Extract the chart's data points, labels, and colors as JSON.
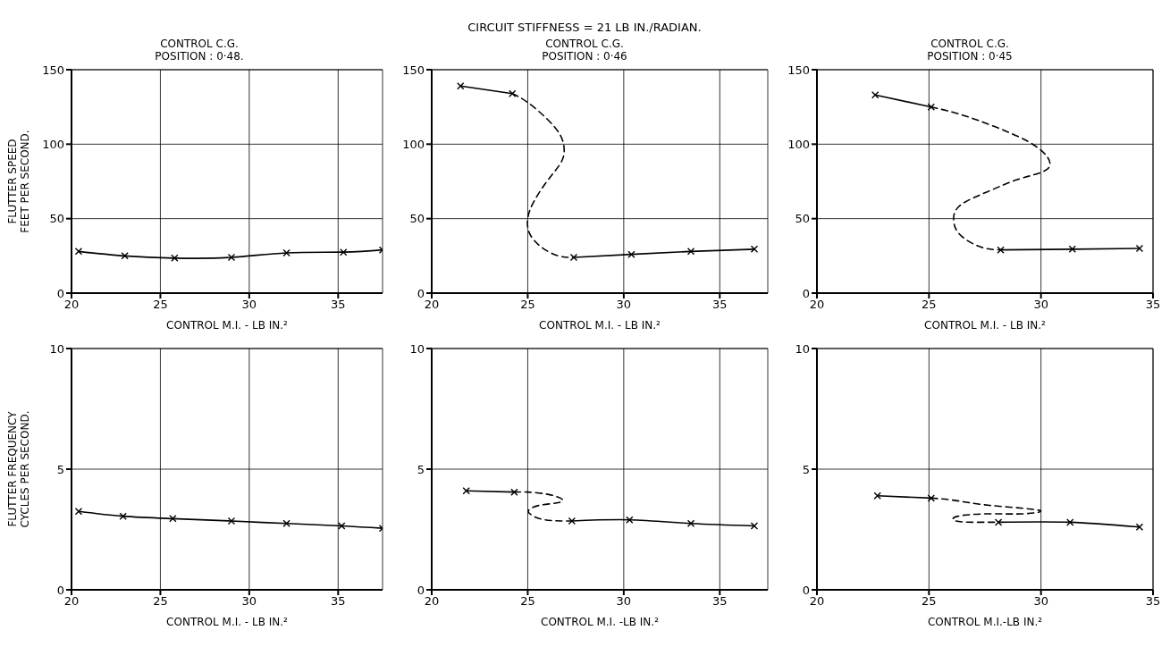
{
  "chart_data": [
    {
      "type": "line",
      "title": "CONTROL C.G.\nPOSITION : 0·48.",
      "xlabel": "CONTROL M.I. - LB IN.²",
      "ylabel": "FLUTTER SPEED\nFEET PER SECOND.",
      "xlim": [
        20,
        37.5
      ],
      "xticks": [
        20,
        25,
        30,
        35
      ],
      "ylim": [
        0,
        150
      ],
      "yticks": [
        0,
        50,
        100,
        150
      ],
      "grid": true,
      "series": [
        {
          "type": "line",
          "color": "#000000",
          "line_style": "solid",
          "marker": "cross",
          "x": [
            20.4,
            23.0,
            25.8,
            29.0,
            32.1,
            35.3,
            37.5
          ],
          "values": [
            28,
            25,
            23.5,
            24,
            27,
            27.5,
            29
          ]
        }
      ]
    },
    {
      "type": "line",
      "title": "CONTROL C.G.\nPOSITION : 0·46",
      "annotations": [
        "CIRCUIT STIFFNESS = 21 LB IN./RADIAN."
      ],
      "xlabel": "CONTROL M.I. - LB IN.²",
      "xlim": [
        20,
        37.5
      ],
      "xticks": [
        20,
        25,
        30,
        35
      ],
      "ylim": [
        0,
        150
      ],
      "yticks": [
        0,
        50,
        100,
        150
      ],
      "grid": true,
      "series": [
        {
          "type": "line",
          "color": "#000000",
          "line_style": "solid",
          "marker": "cross",
          "x": [
            21.5,
            24.2
          ],
          "values": [
            139,
            134
          ]
        },
        {
          "type": "line",
          "color": "#000000",
          "line_style": "dashed",
          "x": [
            24.2,
            25,
            26,
            26.7,
            26.9,
            26.7,
            26,
            25.3,
            25,
            25.1,
            25.7,
            26.6,
            27.4
          ],
          "values": [
            134,
            128,
            117,
            106,
            96,
            87,
            75,
            61,
            50,
            40,
            31,
            25,
            24
          ]
        },
        {
          "type": "line",
          "color": "#000000",
          "line_style": "solid",
          "marker": "cross",
          "x": [
            27.4,
            30.4,
            33.5,
            36.8
          ],
          "values": [
            24,
            26,
            28,
            29.5
          ]
        }
      ]
    },
    {
      "type": "line",
      "title": "CONTROL C.G.\nPOSITION : 0·45",
      "xlabel": "CONTROL M.I. - LB IN.²",
      "xlim": [
        20,
        35
      ],
      "xticks": [
        20,
        25,
        30,
        35
      ],
      "ylim": [
        0,
        150
      ],
      "yticks": [
        0,
        50,
        100,
        150
      ],
      "grid": true,
      "series": [
        {
          "type": "line",
          "color": "#000000",
          "line_style": "solid",
          "marker": "cross",
          "x": [
            22.6,
            25.1
          ],
          "values": [
            133,
            125
          ]
        },
        {
          "type": "line",
          "color": "#000000",
          "line_style": "dashed",
          "x": [
            25.1,
            26.4,
            27.9,
            29.4,
            30.2,
            30.4,
            30,
            28.9,
            27.6,
            26.4,
            26.1,
            26.4,
            27.3,
            28.2
          ],
          "values": [
            125,
            120,
            112,
            102,
            93,
            86,
            81,
            76,
            68,
            59,
            49,
            39,
            31,
            29
          ]
        },
        {
          "type": "line",
          "color": "#000000",
          "line_style": "solid",
          "marker": "cross",
          "x": [
            28.2,
            31.4,
            34.4
          ],
          "values": [
            29,
            29.5,
            30
          ]
        }
      ]
    },
    {
      "type": "line",
      "xlabel": "CONTROL M.I. - LB IN.²",
      "ylabel": "FLUTTER FREQUENCY\nCYCLES PER SECOND.",
      "xlim": [
        20,
        37.5
      ],
      "xticks": [
        20,
        25,
        30,
        35
      ],
      "ylim": [
        0,
        10
      ],
      "yticks": [
        0,
        5,
        10
      ],
      "grid": true,
      "series": [
        {
          "type": "line",
          "color": "#000000",
          "line_style": "solid",
          "marker": "cross",
          "x": [
            20.4,
            22.9,
            25.7,
            29.0,
            32.1,
            35.2,
            37.5
          ],
          "values": [
            3.25,
            3.05,
            2.95,
            2.85,
            2.75,
            2.65,
            2.55
          ]
        }
      ]
    },
    {
      "type": "line",
      "xlabel": "CONTROL M.I. -LB IN.²",
      "xlim": [
        20,
        37.5
      ],
      "xticks": [
        20,
        25,
        30,
        35
      ],
      "ylim": [
        0,
        10
      ],
      "yticks": [
        0,
        5,
        10
      ],
      "grid": true,
      "series": [
        {
          "type": "line",
          "color": "#000000",
          "line_style": "solid",
          "marker": "cross",
          "x": [
            21.8,
            24.3
          ],
          "values": [
            4.1,
            4.05
          ]
        },
        {
          "type": "line",
          "color": "#000000",
          "line_style": "dashed",
          "x": [
            24.3,
            25,
            26.1,
            26.8,
            26.5,
            25.6,
            25.05,
            25.2,
            25.9,
            27.3
          ],
          "values": [
            4.05,
            4.05,
            3.95,
            3.75,
            3.6,
            3.5,
            3.3,
            3.1,
            2.9,
            2.85
          ]
        },
        {
          "type": "line",
          "color": "#000000",
          "line_style": "solid",
          "marker": "cross",
          "x": [
            27.3,
            30.3,
            33.5,
            36.8
          ],
          "values": [
            2.85,
            2.9,
            2.75,
            2.65
          ]
        }
      ]
    },
    {
      "type": "line",
      "xlabel": "CONTROL M.I.-LB IN.²",
      "xlim": [
        20,
        35
      ],
      "xticks": [
        20,
        25,
        30,
        35
      ],
      "ylim": [
        0,
        10
      ],
      "yticks": [
        0,
        5,
        10
      ],
      "grid": true,
      "series": [
        {
          "type": "line",
          "color": "#000000",
          "line_style": "solid",
          "marker": "cross",
          "x": [
            22.7,
            25.1
          ],
          "values": [
            3.9,
            3.8
          ]
        },
        {
          "type": "line",
          "color": "#000000",
          "line_style": "dashed",
          "x": [
            25.1,
            26.2,
            27.7,
            29.9,
            29.2,
            27.7,
            26.3,
            26.2,
            27.1,
            28.1
          ],
          "values": [
            3.8,
            3.7,
            3.5,
            3.3,
            3.15,
            3.15,
            3.05,
            2.85,
            2.8,
            2.8
          ]
        },
        {
          "type": "line",
          "color": "#000000",
          "line_style": "solid",
          "marker": "cross",
          "x": [
            28.1,
            31.3,
            34.4
          ],
          "values": [
            2.8,
            2.8,
            2.6
          ]
        }
      ]
    }
  ]
}
